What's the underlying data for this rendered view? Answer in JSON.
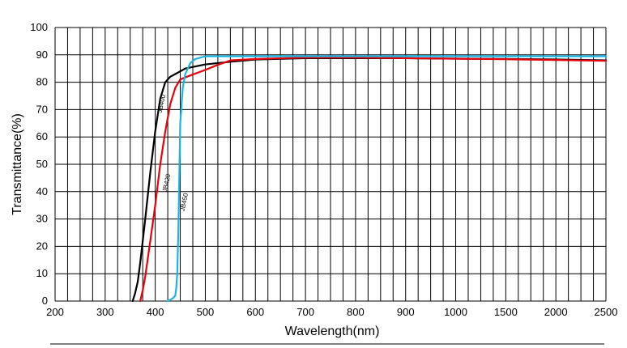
{
  "chart_data": {
    "type": "line",
    "title": "",
    "xlabel": "Wavelength(nm)",
    "ylabel": "Transmittance(%)",
    "x_ticks": [
      "200",
      "300",
      "400",
      "500",
      "600",
      "700",
      "800",
      "900",
      "1000",
      "1500",
      "2000",
      "2500"
    ],
    "x_tick_values": [
      200,
      300,
      400,
      500,
      600,
      700,
      800,
      900,
      1000,
      1500,
      2000,
      2500
    ],
    "y_ticks": [
      "0",
      "10",
      "20",
      "30",
      "40",
      "50",
      "60",
      "70",
      "80",
      "90",
      "100"
    ],
    "ylim": [
      0,
      100
    ],
    "grid": true,
    "series": [
      {
        "name": "JB400",
        "color": "#000000",
        "x": [
          355,
          360,
          365,
          370,
          380,
          390,
          400,
          410,
          420,
          430,
          440,
          460,
          500,
          550,
          600,
          700,
          800,
          900,
          1000,
          1500,
          2000,
          2500
        ],
        "y": [
          0,
          3,
          7,
          14,
          30,
          47,
          62,
          74,
          80,
          82,
          83,
          85,
          86.5,
          87.5,
          88.3,
          88.8,
          88.8,
          88.8,
          88.6,
          88.5,
          88.3,
          88.0
        ]
      },
      {
        "name": "JB420",
        "color": "#e8000b",
        "x": [
          370,
          375,
          380,
          390,
          400,
          410,
          420,
          430,
          440,
          450,
          470,
          500,
          520,
          550,
          600,
          700,
          800,
          900,
          1000,
          1500,
          2000,
          2500
        ],
        "y": [
          0,
          4,
          9,
          22,
          35,
          50,
          62,
          72,
          78,
          81,
          82.5,
          84.5,
          86,
          88,
          88.5,
          89,
          89,
          88.8,
          88.6,
          88.4,
          88.1,
          87.8
        ]
      },
      {
        "name": "JB450",
        "color": "#1bb4e6",
        "x": [
          425,
          430,
          435,
          440,
          442,
          444,
          446,
          448,
          450,
          455,
          460,
          470,
          480,
          500,
          550,
          600,
          700,
          800,
          900,
          1000,
          1500,
          2000,
          2500
        ],
        "y": [
          0,
          0.5,
          1,
          2,
          5,
          10,
          25,
          45,
          65,
          78,
          83,
          87,
          88.5,
          89.5,
          89.5,
          89.5,
          89.5,
          89.5,
          89.5,
          89.5,
          89.5,
          89.5,
          89.5
        ]
      }
    ]
  }
}
